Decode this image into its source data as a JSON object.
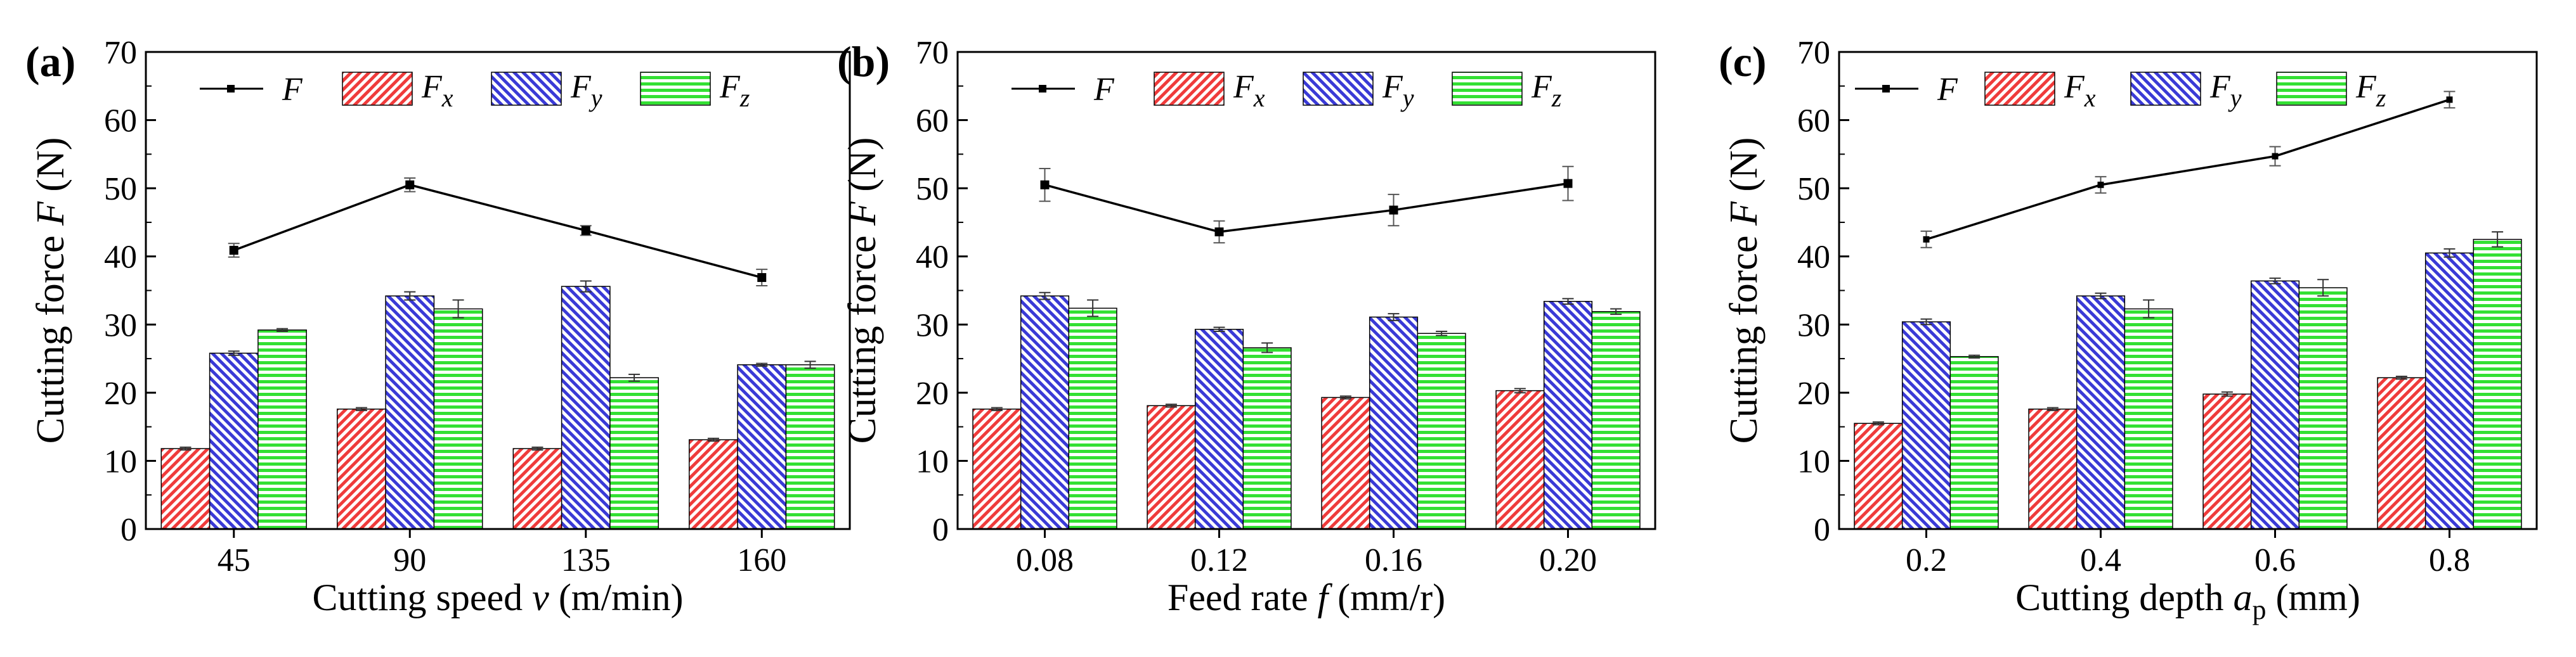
{
  "legend": {
    "F": "F",
    "Fx": "F",
    "Fx_sub": "x",
    "Fy": "F",
    "Fy_sub": "y",
    "Fz": "F",
    "Fz_sub": "z"
  },
  "colors": {
    "fx": "#ef3b3b",
    "fy": "#3a3ad6",
    "fz": "#33e033",
    "line": "#000000"
  },
  "chart_data": [
    {
      "type": "bar",
      "panel_label": "(a)",
      "categories": [
        "45",
        "90",
        "135",
        "160"
      ],
      "xlabel_parts": [
        "Cutting speed ",
        "v",
        " (m/min)"
      ],
      "ylabel_parts": [
        "Cutting force ",
        "F",
        " (N)"
      ],
      "ylim": [
        0,
        70
      ],
      "yticks": [
        "0",
        "10",
        "20",
        "30",
        "40",
        "50",
        "60",
        "70"
      ],
      "series": [
        {
          "name": "Fx",
          "values": [
            11.8,
            17.6,
            11.8,
            13.1
          ],
          "errors": [
            0.2,
            0.2,
            0.2,
            0.2
          ]
        },
        {
          "name": "Fy",
          "values": [
            25.8,
            34.2,
            35.6,
            24.1
          ],
          "errors": [
            0.3,
            0.6,
            0.8,
            0.2
          ]
        },
        {
          "name": "Fz",
          "values": [
            29.2,
            32.3,
            22.2,
            24.1
          ],
          "errors": [
            0.2,
            1.3,
            0.5,
            0.5
          ]
        }
      ],
      "line": {
        "name": "F",
        "values": [
          40.9,
          50.5,
          43.8,
          36.9
        ],
        "errors": [
          1.0,
          1.0,
          0.7,
          1.2
        ]
      }
    },
    {
      "type": "bar",
      "panel_label": "(b)",
      "categories": [
        "0.08",
        "0.12",
        "0.16",
        "0.20"
      ],
      "xlabel_parts": [
        "Feed rate ",
        "f",
        " (mm/r)"
      ],
      "ylabel_parts": [
        "Cutting force ",
        "F",
        " (N)"
      ],
      "ylim": [
        0,
        70
      ],
      "yticks": [
        "0",
        "10",
        "20",
        "30",
        "40",
        "50",
        "60",
        "70"
      ],
      "series": [
        {
          "name": "Fx",
          "values": [
            17.6,
            18.1,
            19.3,
            20.3
          ],
          "errors": [
            0.2,
            0.2,
            0.2,
            0.3
          ]
        },
        {
          "name": "Fy",
          "values": [
            34.2,
            29.3,
            31.1,
            33.4
          ],
          "errors": [
            0.5,
            0.3,
            0.5,
            0.4
          ]
        },
        {
          "name": "Fz",
          "values": [
            32.4,
            26.6,
            28.7,
            31.9
          ],
          "errors": [
            1.2,
            0.7,
            0.3,
            0.4
          ]
        }
      ],
      "line": {
        "name": "F",
        "values": [
          50.5,
          43.6,
          46.8,
          50.7
        ],
        "errors": [
          2.4,
          1.6,
          2.3,
          2.5
        ]
      }
    },
    {
      "type": "bar",
      "panel_label": "(c)",
      "categories": [
        "0.2",
        "0.4",
        "0.6",
        "0.8"
      ],
      "xlabel_parts": [
        "Cutting depth ",
        "a",
        "p",
        " (mm)"
      ],
      "ylabel_parts": [
        "Cutting force ",
        "F",
        " (N)"
      ],
      "ylim": [
        0,
        70
      ],
      "yticks": [
        "0",
        "10",
        "20",
        "30",
        "40",
        "50",
        "60",
        "70"
      ],
      "series": [
        {
          "name": "Fx",
          "values": [
            15.5,
            17.6,
            19.8,
            22.2
          ],
          "errors": [
            0.2,
            0.2,
            0.3,
            0.2
          ]
        },
        {
          "name": "Fy",
          "values": [
            30.4,
            34.2,
            36.4,
            40.5
          ],
          "errors": [
            0.4,
            0.4,
            0.4,
            0.6
          ]
        },
        {
          "name": "Fz",
          "values": [
            25.3,
            32.3,
            35.4,
            42.5
          ],
          "errors": [
            0.2,
            1.3,
            1.2,
            1.1
          ]
        }
      ],
      "line": {
        "name": "F",
        "values": [
          42.5,
          50.5,
          54.7,
          63.0
        ],
        "errors": [
          1.2,
          1.2,
          1.4,
          1.2
        ]
      }
    }
  ]
}
